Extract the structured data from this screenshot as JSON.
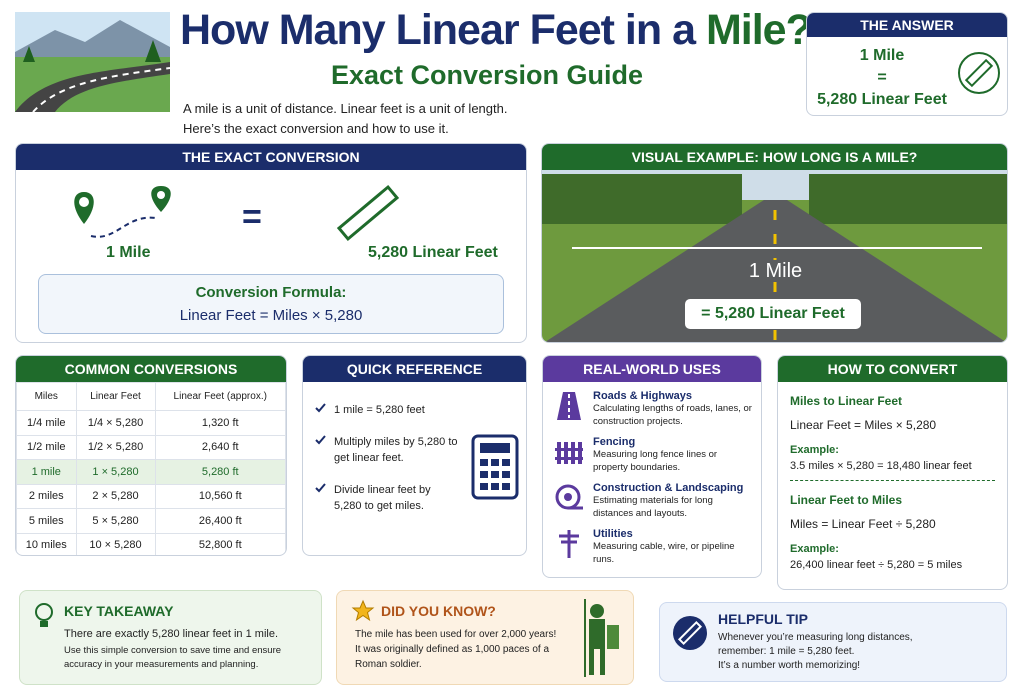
{
  "header": {
    "title": "How Many Linear Feet in a",
    "title_accent": "Mile?",
    "subtitle": "Exact Conversion Guide",
    "intro": [
      "A mile is a unit of distance. Linear feet is a unit of length.",
      "Here’s the exact conversion and how to use it."
    ]
  },
  "answer": {
    "heading": "THE ANSWER",
    "lines": [
      "1 Mile",
      "=",
      "5,280 Linear Feet"
    ]
  },
  "exact": {
    "heading": "THE EXACT CONVERSION",
    "left": "1 Mile",
    "equals": "=",
    "right": "5,280 Linear Feet",
    "formula_title": "Conversion Formula:",
    "formula": "Linear Feet = Miles × 5,280"
  },
  "visual": {
    "heading": "VISUAL EXAMPLE: HOW LONG IS A MILE?",
    "label": "1 Mile",
    "badge": "= 5,280 Linear Feet"
  },
  "common": {
    "heading": "COMMON CONVERSIONS",
    "columns": [
      "Miles",
      "Linear Feet",
      "Linear Feet (approx.)"
    ],
    "rows": [
      [
        "1/4 mile",
        "1/4 × 5,280",
        "1,320 ft"
      ],
      [
        "1/2 mile",
        "1/2 × 5,280",
        "2,640 ft"
      ],
      [
        "1 mile",
        "1 × 5,280",
        "5,280 ft"
      ],
      [
        "2 miles",
        "2 × 5,280",
        "10,560 ft"
      ],
      [
        "5 miles",
        "5 × 5,280",
        "26,400 ft"
      ],
      [
        "10 miles",
        "10 × 5,280",
        "52,800 ft"
      ]
    ]
  },
  "quick": {
    "heading": "QUICK REFERENCE",
    "items": [
      "1 mile = 5,280 feet",
      "Multiply miles by 5,280 to get linear feet.",
      "Divide linear feet by 5,280 to get miles."
    ]
  },
  "uses": {
    "heading": "REAL-WORLD USES",
    "items": [
      {
        "title": "Roads & Highways",
        "text": "Calculating lengths of roads, lanes, or construction projects."
      },
      {
        "title": "Fencing",
        "text": "Measuring long fence lines or property boundaries."
      },
      {
        "title": "Construction & Landscaping",
        "text": "Estimating materials for long distances and layouts."
      },
      {
        "title": "Utilities",
        "text": "Measuring cable, wire, or pipeline runs."
      }
    ]
  },
  "convert": {
    "heading": "HOW TO CONVERT",
    "sections": [
      {
        "title": "Miles to Linear Feet",
        "formula": "Linear Feet = Miles × 5,280",
        "example_label": "Example:",
        "example": "3.5 miles × 5,280 = 18,480 linear feet"
      },
      {
        "title": "Linear Feet to Miles",
        "formula": "Miles = Linear Feet ÷ 5,280",
        "example_label": "Example:",
        "example": "26,400 linear feet ÷ 5,280 = 5 miles"
      }
    ]
  },
  "takeaway": {
    "title": "KEY TAKEAWAY",
    "lead": "There are exactly 5,280 linear feet in 1 mile.",
    "text": "Use this simple conversion to save time and ensure accuracy in your measurements and planning."
  },
  "didyouknow": {
    "title": "DID YOU KNOW?",
    "lines": [
      "The mile has been used for over 2,000 years!",
      "It was originally defined as 1,000 paces of a Roman soldier."
    ]
  },
  "tip": {
    "title": "HELPFUL TIP",
    "lines": [
      "Whenever you’re measuring long distances, remember: 1 mile = 5,280 feet.",
      "It’s a number worth memorizing!"
    ]
  }
}
